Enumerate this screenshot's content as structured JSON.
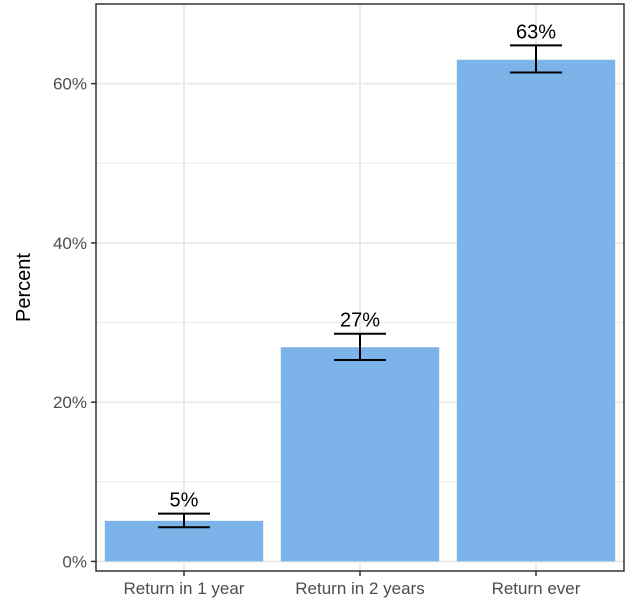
{
  "chart_data": {
    "type": "bar",
    "categories": [
      "Return in 1 year",
      "Return in 2 years",
      "Return ever"
    ],
    "values": [
      5.1,
      26.9,
      63.0
    ],
    "error_low": [
      4.3,
      25.3,
      61.4
    ],
    "error_high": [
      6.0,
      28.6,
      64.8
    ],
    "data_labels": [
      "5%",
      "27%",
      "63%"
    ],
    "title": "",
    "xlabel": "",
    "ylabel": "Percent",
    "ylim": [
      -1.2,
      70.0
    ],
    "y_ticks": [
      0,
      20,
      40,
      60
    ],
    "y_tick_labels": [
      "0%",
      "20%",
      "40%",
      "60%"
    ],
    "minor_y_gridlines": [
      10,
      30,
      50
    ],
    "grid": true,
    "legend": "none",
    "colors": {
      "bar": "#7cb4ea",
      "grid": "#ebebeb",
      "axis_text": "#4d4d4d",
      "text": "#000000",
      "border": "#333333"
    }
  }
}
